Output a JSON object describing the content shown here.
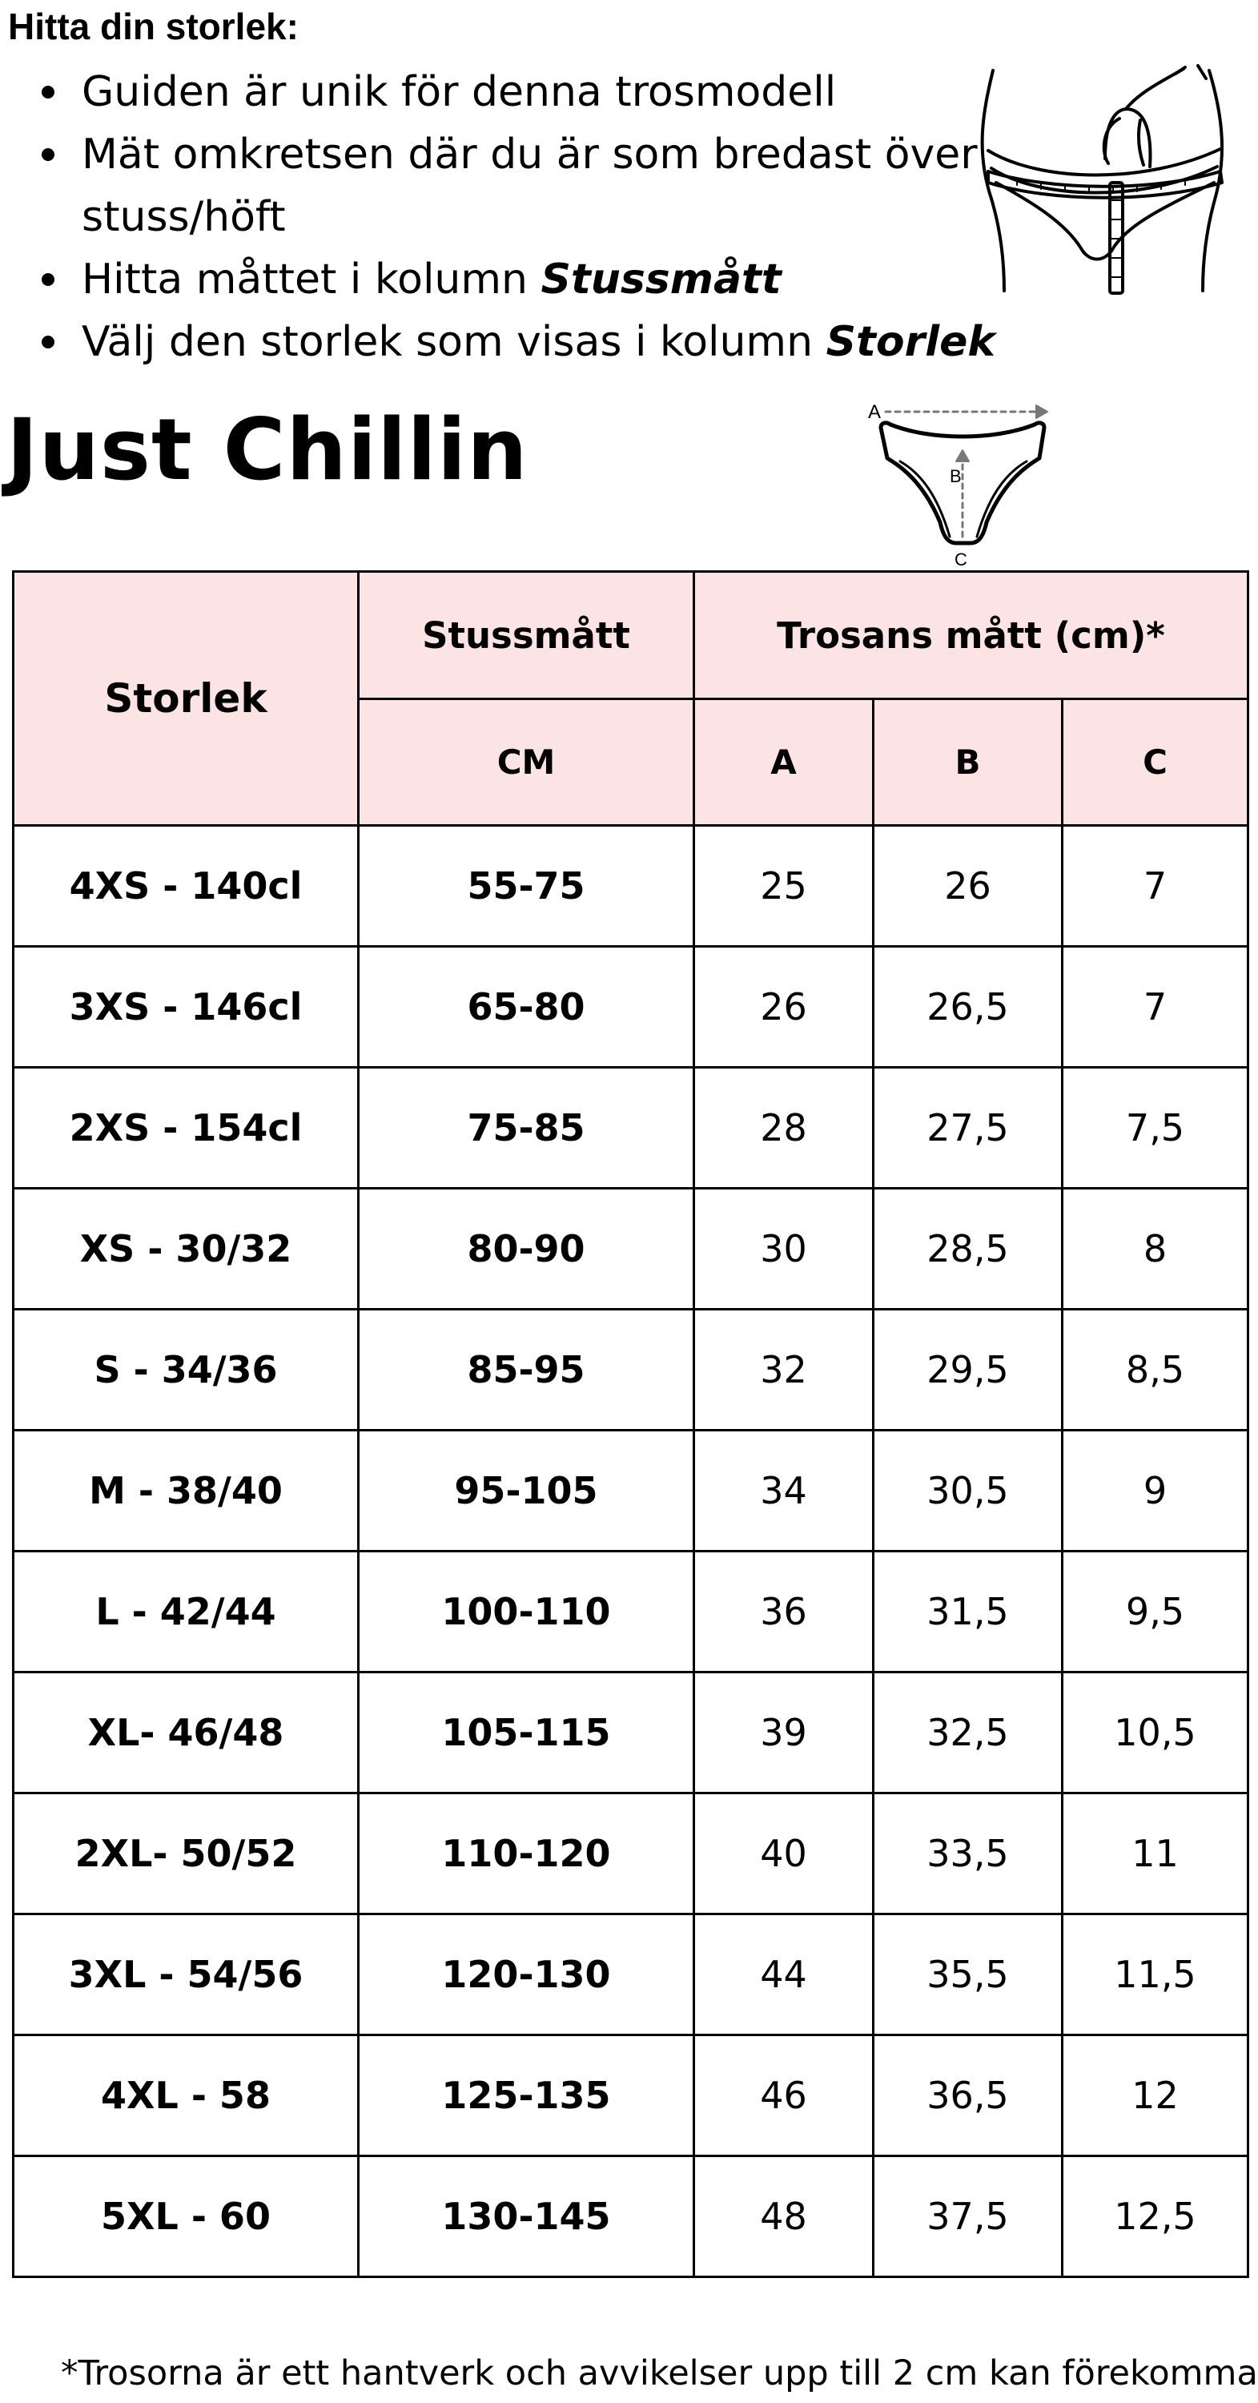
{
  "guide": {
    "heading": "Hitta din storlek:",
    "bullets": [
      {
        "text": "Guiden är unik för denna trosmodell",
        "emphasis": ""
      },
      {
        "text": "Mät omkretsen där du är som bredast över stuss/höft",
        "emphasis": ""
      },
      {
        "text": "Hitta måttet i kolumn ",
        "emphasis": "Stussmått"
      },
      {
        "text": "Välj den storlek som visas i kolumn ",
        "emphasis": "Storlek"
      }
    ]
  },
  "model_title": "Just Chillin",
  "diagram": {
    "labels": {
      "a": "A",
      "b": "B",
      "c": "C"
    }
  },
  "table": {
    "headers": {
      "size": "Storlek",
      "stuss": "Stussmått",
      "trosa": "Trosans mått (cm)*",
      "cm": "CM",
      "a": "A",
      "b": "B",
      "c": "C"
    },
    "rows": [
      [
        "4XS  -  140cl",
        "55-75",
        "25",
        "26",
        "7"
      ],
      [
        "3XS  -  146cl",
        "65-80",
        "26",
        "26,5",
        "7"
      ],
      [
        "2XS  -  154cl",
        "75-85",
        "28",
        "27,5",
        "7,5"
      ],
      [
        "XS  -  30/32",
        "80-90",
        "30",
        "28,5",
        "8"
      ],
      [
        "S - 34/36",
        "85-95",
        "32",
        "29,5",
        "8,5"
      ],
      [
        "M - 38/40",
        "95-105",
        "34",
        "30,5",
        "9"
      ],
      [
        "L - 42/44",
        "100-110",
        "36",
        "31,5",
        "9,5"
      ],
      [
        "XL- 46/48",
        "105-115",
        "39",
        "32,5",
        "10,5"
      ],
      [
        "2XL- 50/52",
        "110-120",
        "40",
        "33,5",
        "11"
      ],
      [
        "3XL - 54/56",
        "120-130",
        "44",
        "35,5",
        "11,5"
      ],
      [
        "4XL - 58",
        "125-135",
        "46",
        "36,5",
        "12"
      ],
      [
        "5XL - 60",
        "130-145",
        "48",
        "37,5",
        "12,5"
      ]
    ]
  },
  "footnote": "*Trosorna är ett hantverk och avvikelser upp till 2 cm kan förekomma",
  "colors": {
    "header_bg": "#fce4e4",
    "border": "#000000",
    "text": "#000000"
  }
}
